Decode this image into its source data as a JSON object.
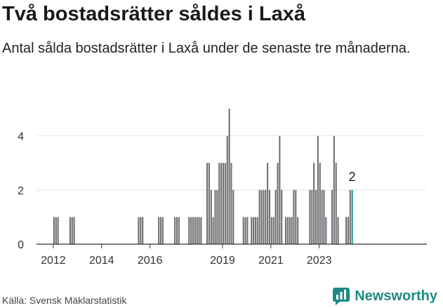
{
  "header": {
    "title": "Två bostadsrätter såldes i Laxå",
    "subtitle": "Antal sålda bostadsrätter i Laxå under de senaste tre månaderna."
  },
  "footer": {
    "source": "Källa: Svensk Mäklarstatistik",
    "brand": "Newsworthy",
    "brand_icon": "newsworthy-logo-icon"
  },
  "colors": {
    "bar": "#6e6e73",
    "highlight": "#1f9e94",
    "brand": "#1f8a84"
  },
  "chart_data": {
    "type": "bar",
    "title": "",
    "xlabel": "",
    "ylabel": "",
    "x_start": "2011-12",
    "x_end": "2023-03",
    "x_ticks": [
      "2012",
      "2014",
      "2016",
      "2019",
      "2021",
      "2023"
    ],
    "ylim": [
      0,
      5
    ],
    "y_ticks": [
      "0",
      "2",
      "4"
    ],
    "grid": true,
    "highlight_label": "2",
    "values": [
      0,
      1,
      1,
      1,
      0,
      0,
      0,
      0,
      0,
      1,
      1,
      1,
      0,
      0,
      0,
      0,
      0,
      0,
      0,
      0,
      0,
      0,
      0,
      0,
      0,
      0,
      0,
      0,
      0,
      0,
      0,
      0,
      0,
      0,
      0,
      0,
      0,
      0,
      0,
      0,
      0,
      0,
      0,
      1,
      1,
      1,
      0,
      0,
      0,
      0,
      0,
      0,
      0,
      1,
      1,
      1,
      0,
      0,
      0,
      0,
      0,
      1,
      1,
      1,
      0,
      0,
      0,
      0,
      1,
      1,
      1,
      1,
      1,
      1,
      1,
      0,
      0,
      3,
      3,
      2,
      1,
      2,
      2,
      3,
      3,
      3,
      3,
      4,
      5,
      3,
      2,
      0,
      0,
      0,
      0,
      1,
      1,
      1,
      0,
      1,
      1,
      1,
      1,
      2,
      2,
      2,
      2,
      3,
      2,
      1,
      1,
      2,
      3,
      4,
      2,
      0,
      1,
      1,
      1,
      1,
      2,
      2,
      1,
      0,
      0,
      0,
      0,
      0,
      2,
      2,
      3,
      2,
      4,
      3,
      2,
      2,
      1,
      0,
      0,
      2,
      4,
      3,
      1,
      0,
      0,
      0,
      1,
      1,
      2,
      2
    ]
  }
}
